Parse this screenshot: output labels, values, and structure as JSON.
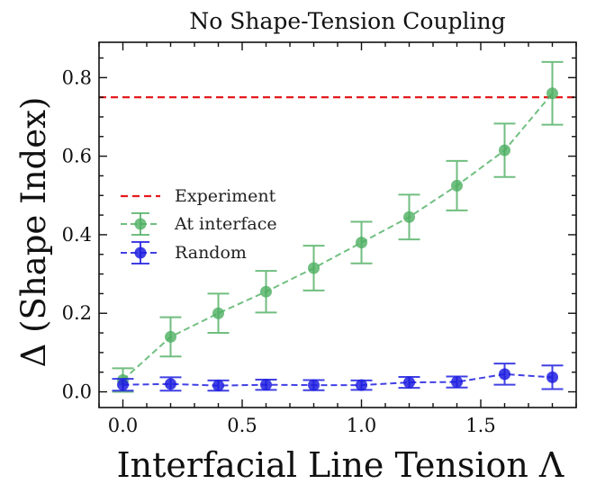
{
  "chart_data": {
    "type": "line",
    "title": "No Shape-Tension Coupling",
    "xlabel": "Interfacial Line Tension Λ",
    "ylabel": "Δ (Shape Index)",
    "xlim": [
      -0.1,
      1.9
    ],
    "ylim": [
      -0.04,
      0.89
    ],
    "xticks": [
      0.0,
      0.5,
      1.0,
      1.5
    ],
    "xtick_labels": [
      "0.0",
      "0.5",
      "1.0",
      "1.5"
    ],
    "yticks": [
      0.0,
      0.2,
      0.4,
      0.6,
      0.8
    ],
    "ytick_labels": [
      "0.0",
      "0.2",
      "0.4",
      "0.6",
      "0.8"
    ],
    "legend_position": "center-left",
    "reference_line": {
      "name": "Experiment",
      "y": 0.75,
      "color": "#e41a1c",
      "style": "dashed"
    },
    "series": [
      {
        "name": "At interface",
        "color": "#4daf61",
        "x": [
          0.0,
          0.2,
          0.4,
          0.6,
          0.8,
          1.0,
          1.2,
          1.4,
          1.6,
          1.8
        ],
        "y": [
          0.03,
          0.14,
          0.2,
          0.255,
          0.315,
          0.38,
          0.445,
          0.525,
          0.615,
          0.76
        ],
        "err": [
          0.03,
          0.05,
          0.05,
          0.053,
          0.057,
          0.053,
          0.057,
          0.063,
          0.068,
          0.08
        ]
      },
      {
        "name": "Random",
        "color": "#1f1fe0",
        "x": [
          0.0,
          0.2,
          0.4,
          0.6,
          0.8,
          1.0,
          1.2,
          1.4,
          1.6,
          1.8
        ],
        "y": [
          0.018,
          0.02,
          0.016,
          0.018,
          0.017,
          0.017,
          0.024,
          0.025,
          0.045,
          0.037
        ],
        "err": [
          0.015,
          0.017,
          0.013,
          0.013,
          0.013,
          0.012,
          0.014,
          0.014,
          0.027,
          0.03
        ]
      }
    ]
  }
}
